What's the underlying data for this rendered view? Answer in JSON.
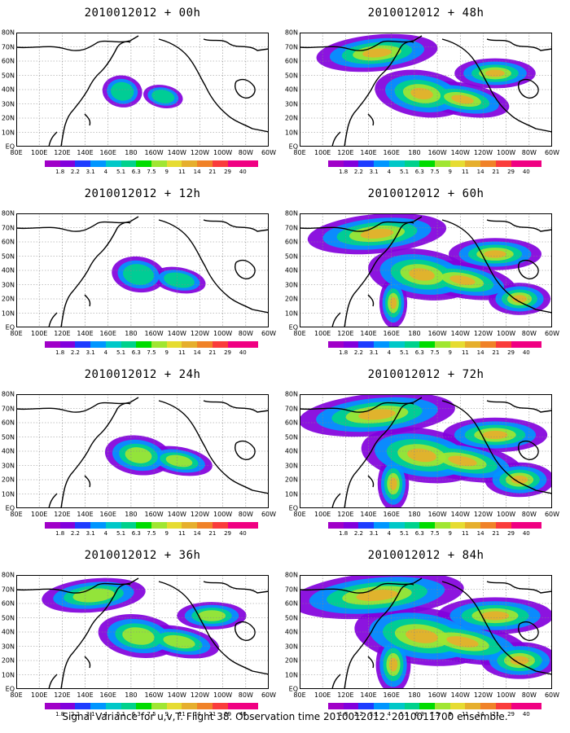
{
  "panels": [
    {
      "title": "2010012012 + 00h",
      "level": 0
    },
    {
      "title": "2010012012 + 12h",
      "level": 1
    },
    {
      "title": "2010012012 + 24h",
      "level": 2
    },
    {
      "title": "2010012012 + 36h",
      "level": 3
    },
    {
      "title": "2010012012 + 48h",
      "level": 4
    },
    {
      "title": "2010012012 + 60h",
      "level": 5
    },
    {
      "title": "2010012012 + 72h",
      "level": 6
    },
    {
      "title": "2010012012 + 84h",
      "level": 7
    }
  ],
  "latitude_labels": [
    "80N",
    "70N",
    "60N",
    "50N",
    "40N",
    "30N",
    "20N",
    "10N",
    "EQ"
  ],
  "longitude_labels": [
    "80E",
    "100E",
    "120E",
    "140E",
    "160E",
    "180",
    "160W",
    "140W",
    "120W",
    "100W",
    "80W",
    "60W"
  ],
  "colorbar": {
    "labels": [
      "1.8",
      "2.2",
      "3.1",
      "4",
      "5.1",
      "6.3",
      "7.5",
      "9",
      "11",
      "14",
      "21",
      "29",
      "40"
    ],
    "colors": [
      "#a000c8",
      "#8200dc",
      "#1e3cff",
      "#0096ff",
      "#00c8c8",
      "#00d28c",
      "#00dc00",
      "#a0e632",
      "#e6dc32",
      "#e6af2d",
      "#f08228",
      "#fa3c3c",
      "#f00082"
    ]
  },
  "caption": "Signal Variance for u,v,T. Flight 38. Observation time 2010012012. 2010011700 ensemble."
}
